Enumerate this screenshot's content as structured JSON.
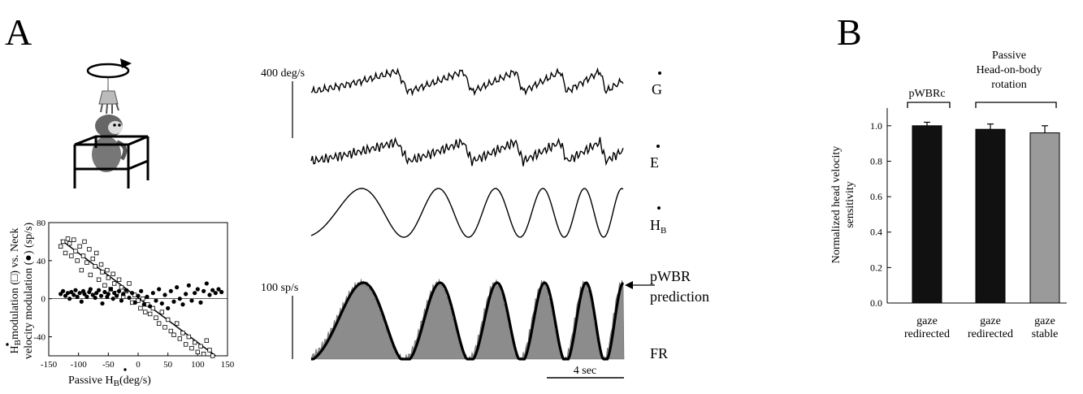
{
  "panels": {
    "a": "A",
    "b": "B"
  },
  "traces": {
    "scale_velocity": "400 deg/s",
    "scale_rate": "100 sp/s",
    "gaze_label": "G",
    "eye_label": "E",
    "head_label": "H",
    "head_subscript": "B",
    "prediction_label_1": "pWBR",
    "prediction_label_2": "prediction",
    "fr_label": "FR",
    "time_scale": "4 sec"
  },
  "scatter": {
    "ylabel_top": "modulation (□) vs. Neck",
    "ylabel_bottom": "velocity modulation (●) (sp/s)",
    "ylabel_symbol": "H",
    "ylabel_sub": "B",
    "xlabel_pre": "Passive ",
    "xlabel_symbol": "H",
    "xlabel_sub": "B",
    "xlabel_post": "(deg/s)",
    "xticks": [
      "-150",
      "-100",
      "-50",
      "0",
      "50",
      "100",
      "150"
    ],
    "yticks": [
      "80",
      "40",
      "0",
      "-40"
    ],
    "xlim": [
      -150,
      150
    ],
    "ylim": [
      -60,
      80
    ],
    "regression": {
      "x1": -130,
      "y1": 62,
      "x2": 130,
      "y2": -60
    },
    "head_modulation": [
      [
        -130,
        55
      ],
      [
        -126,
        60
      ],
      [
        -122,
        48
      ],
      [
        -118,
        63
      ],
      [
        -115,
        58
      ],
      [
        -112,
        45
      ],
      [
        -108,
        62
      ],
      [
        -105,
        50
      ],
      [
        -102,
        40
      ],
      [
        -98,
        55
      ],
      [
        -95,
        30
      ],
      [
        -92,
        45
      ],
      [
        -90,
        60
      ],
      [
        -86,
        38
      ],
      [
        -82,
        52
      ],
      [
        -80,
        25
      ],
      [
        -76,
        42
      ],
      [
        -72,
        34
      ],
      [
        -70,
        48
      ],
      [
        -66,
        20
      ],
      [
        -62,
        36
      ],
      [
        -60,
        28
      ],
      [
        -56,
        14
      ],
      [
        -52,
        30
      ],
      [
        -50,
        22
      ],
      [
        -46,
        10
      ],
      [
        -42,
        26
      ],
      [
        -40,
        16
      ],
      [
        -36,
        6
      ],
      [
        -32,
        20
      ],
      [
        -28,
        12
      ],
      [
        -25,
        2
      ],
      [
        -20,
        8
      ],
      [
        -15,
        16
      ],
      [
        -10,
        -4
      ],
      [
        -6,
        4
      ],
      [
        0,
        -2
      ],
      [
        4,
        -10
      ],
      [
        8,
        0
      ],
      [
        12,
        -14
      ],
      [
        16,
        -6
      ],
      [
        20,
        -16
      ],
      [
        25,
        -10
      ],
      [
        30,
        -20
      ],
      [
        35,
        -26
      ],
      [
        40,
        -14
      ],
      [
        45,
        -30
      ],
      [
        50,
        -22
      ],
      [
        55,
        -34
      ],
      [
        60,
        -38
      ],
      [
        65,
        -26
      ],
      [
        70,
        -42
      ],
      [
        75,
        -36
      ],
      [
        80,
        -48
      ],
      [
        85,
        -40
      ],
      [
        90,
        -52
      ],
      [
        95,
        -46
      ],
      [
        100,
        -56
      ],
      [
        105,
        -50
      ],
      [
        110,
        -58
      ],
      [
        115,
        -44
      ],
      [
        120,
        -54
      ],
      [
        125,
        -60
      ]
    ],
    "neck_modulation": [
      [
        -130,
        5
      ],
      [
        -126,
        8
      ],
      [
        -122,
        3
      ],
      [
        -118,
        6
      ],
      [
        -115,
        0
      ],
      [
        -112,
        7
      ],
      [
        -108,
        4
      ],
      [
        -105,
        9
      ],
      [
        -102,
        2
      ],
      [
        -98,
        6
      ],
      [
        -95,
        -3
      ],
      [
        -92,
        8
      ],
      [
        -90,
        5
      ],
      [
        -86,
        2
      ],
      [
        -82,
        7
      ],
      [
        -80,
        10
      ],
      [
        -76,
        4
      ],
      [
        -72,
        1
      ],
      [
        -70,
        6
      ],
      [
        -66,
        9
      ],
      [
        -62,
        3
      ],
      [
        -60,
        -5
      ],
      [
        -56,
        7
      ],
      [
        -52,
        2
      ],
      [
        -50,
        5
      ],
      [
        -46,
        10
      ],
      [
        -42,
        0
      ],
      [
        -40,
        6
      ],
      [
        -36,
        3
      ],
      [
        -32,
        8
      ],
      [
        -28,
        -2
      ],
      [
        -25,
        5
      ],
      [
        -20,
        9
      ],
      [
        -15,
        1
      ],
      [
        -10,
        6
      ],
      [
        -5,
        -4
      ],
      [
        0,
        3
      ],
      [
        5,
        8
      ],
      [
        10,
        -6
      ],
      [
        15,
        2
      ],
      [
        20,
        -8
      ],
      [
        25,
        6
      ],
      [
        30,
        -2
      ],
      [
        35,
        10
      ],
      [
        40,
        -5
      ],
      [
        45,
        4
      ],
      [
        50,
        -10
      ],
      [
        55,
        8
      ],
      [
        60,
        -3
      ],
      [
        65,
        12
      ],
      [
        70,
        0
      ],
      [
        75,
        -6
      ],
      [
        80,
        5
      ],
      [
        85,
        14
      ],
      [
        90,
        -2
      ],
      [
        95,
        6
      ],
      [
        100,
        10
      ],
      [
        105,
        -4
      ],
      [
        110,
        8
      ],
      [
        115,
        16
      ],
      [
        120,
        4
      ],
      [
        125,
        9
      ],
      [
        130,
        6
      ],
      [
        135,
        10
      ],
      [
        140,
        7
      ]
    ]
  },
  "chart_data": {
    "type": "bar",
    "categories": [
      "gaze redirected",
      "gaze redirected",
      "gaze stable"
    ],
    "category_lines": [
      [
        "gaze",
        "redirected"
      ],
      [
        "gaze",
        "redirected"
      ],
      [
        "gaze",
        "stable"
      ]
    ],
    "values": [
      1.0,
      0.98,
      0.96
    ],
    "errors": [
      0.02,
      0.03,
      0.04
    ],
    "bar_colors": [
      "#111111",
      "#111111",
      "#9a9a9a"
    ],
    "groups": [
      {
        "lines": [
          "pWBRc"
        ]
      },
      {
        "lines": [
          "Passive",
          "Head-on-body",
          "rotation"
        ]
      }
    ],
    "ylabel_1": "Normalized head velocity",
    "ylabel_2": "sensitivity",
    "yticks": [
      "0.0",
      "0.2",
      "0.4",
      "0.6",
      "0.8",
      "1.0"
    ],
    "ylim": [
      0,
      1.1
    ]
  }
}
